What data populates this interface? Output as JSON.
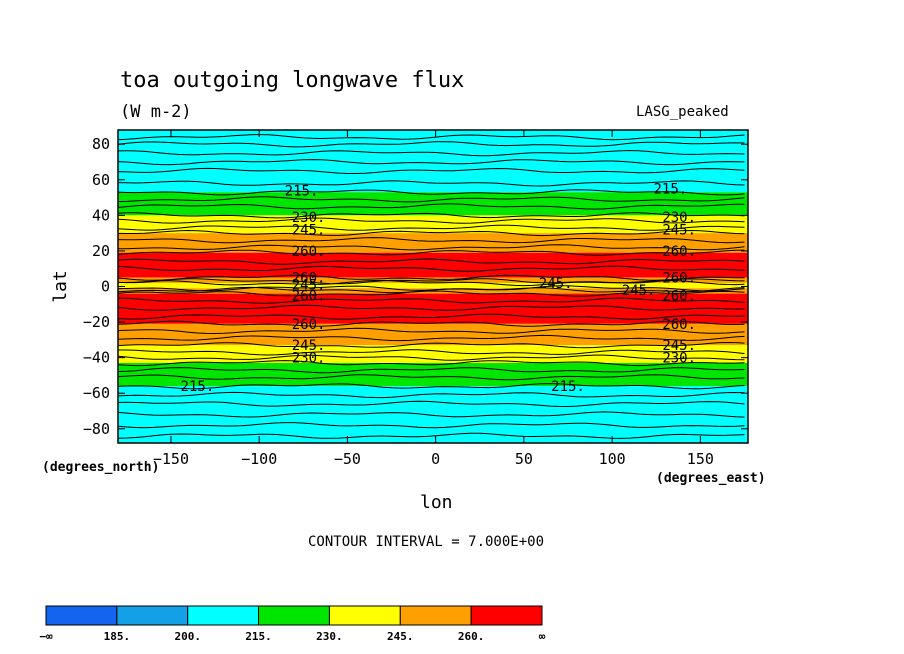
{
  "page": {
    "title": "toa outgoing longwave flux",
    "units": "(W m-2)",
    "dataset": "LASG_peaked",
    "ylabel": "lat",
    "yunits": "(degrees_north)",
    "xlabel": "lon",
    "xunits": "(degrees_east)",
    "interval_text": "CONTOUR INTERVAL = 7.000E+00"
  },
  "chart_data": {
    "type": "heatmap",
    "title": "toa outgoing longwave flux",
    "subtitle": "(W m-2)",
    "xlabel": "lon",
    "ylabel": "lat",
    "xlim": [
      -180,
      177
    ],
    "ylim": [
      -88,
      88
    ],
    "x_ticks": [
      -150,
      -100,
      -50,
      0,
      50,
      100,
      150
    ],
    "y_ticks": [
      -80,
      -60,
      -40,
      -20,
      0,
      20,
      40,
      60,
      80
    ],
    "x_tick_labels": [
      "−150",
      "−100",
      "−50",
      "0",
      "50",
      "100",
      "150"
    ],
    "y_tick_labels": [
      "−80",
      "−60",
      "−40",
      "−20",
      "0",
      "20",
      "40",
      "60",
      "80"
    ],
    "contour_interval": 7.0,
    "colorbar": {
      "colors": [
        "#1464f0",
        "#14a0e6",
        "#00ffff",
        "#00e600",
        "#ffff00",
        "#ffa000",
        "#ff0000"
      ],
      "labels": [
        "−∞",
        "185.",
        "200.",
        "215.",
        "230.",
        "245.",
        "260.",
        "∞"
      ]
    },
    "bands": [
      {
        "lat_min": 53,
        "lat_max": 88,
        "class": 2
      },
      {
        "lat_min": 40,
        "lat_max": 53,
        "class": 3
      },
      {
        "lat_min": 30,
        "lat_max": 40,
        "class": 4
      },
      {
        "lat_min": 19,
        "lat_max": 30,
        "class": 5
      },
      {
        "lat_min": 5,
        "lat_max": 19,
        "class": 6
      },
      {
        "lat_min": 2,
        "lat_max": 5,
        "class": 5
      },
      {
        "lat_min": -1,
        "lat_max": 2,
        "class": 4
      },
      {
        "lat_min": -4,
        "lat_max": -1,
        "class": 5
      },
      {
        "lat_min": -21,
        "lat_max": -4,
        "class": 6
      },
      {
        "lat_min": -33,
        "lat_max": -21,
        "class": 5
      },
      {
        "lat_min": -43,
        "lat_max": -33,
        "class": 4
      },
      {
        "lat_min": -56,
        "lat_max": -43,
        "class": 3
      },
      {
        "lat_min": -88,
        "lat_max": -56,
        "class": 2
      }
    ],
    "contour_lats": [
      84,
      80,
      75,
      70,
      65,
      58,
      53,
      49,
      45,
      40,
      37,
      33,
      30,
      26,
      22,
      19,
      14,
      10,
      5,
      3,
      2,
      -1,
      -2,
      -4,
      -8,
      -12,
      -17,
      -21,
      -25,
      -29,
      -33,
      -37,
      -40,
      -43,
      -47,
      -51,
      -56,
      -61,
      -66,
      -72,
      -78,
      -84
    ],
    "contour_labels": [
      {
        "text": "215.",
        "lon": -76,
        "lat": 54
      },
      {
        "text": "215.",
        "lon": 133,
        "lat": 55
      },
      {
        "text": "230.",
        "lon": -72,
        "lat": 39
      },
      {
        "text": "230.",
        "lon": 138,
        "lat": 39
      },
      {
        "text": "245.",
        "lon": -72,
        "lat": 32
      },
      {
        "text": "245.",
        "lon": 138,
        "lat": 32
      },
      {
        "text": "260.",
        "lon": -72,
        "lat": 20
      },
      {
        "text": "260.",
        "lon": 138,
        "lat": 20
      },
      {
        "text": "260.",
        "lon": -72,
        "lat": 5
      },
      {
        "text": "260.",
        "lon": 138,
        "lat": 5
      },
      {
        "text": "245.",
        "lon": -72,
        "lat": 1
      },
      {
        "text": "245.",
        "lon": 68,
        "lat": 2
      },
      {
        "text": "245.",
        "lon": 115,
        "lat": -2
      },
      {
        "text": "260.",
        "lon": -72,
        "lat": -5
      },
      {
        "text": "260.",
        "lon": 138,
        "lat": -5
      },
      {
        "text": "260.",
        "lon": -72,
        "lat": -21
      },
      {
        "text": "260.",
        "lon": 138,
        "lat": -21
      },
      {
        "text": "245.",
        "lon": -72,
        "lat": -33
      },
      {
        "text": "245.",
        "lon": 138,
        "lat": -33
      },
      {
        "text": "230.",
        "lon": -72,
        "lat": -40
      },
      {
        "text": "230.",
        "lon": 138,
        "lat": -40
      },
      {
        "text": "215.",
        "lon": -135,
        "lat": -56
      },
      {
        "text": "215.",
        "lon": 75,
        "lat": -56
      }
    ]
  }
}
